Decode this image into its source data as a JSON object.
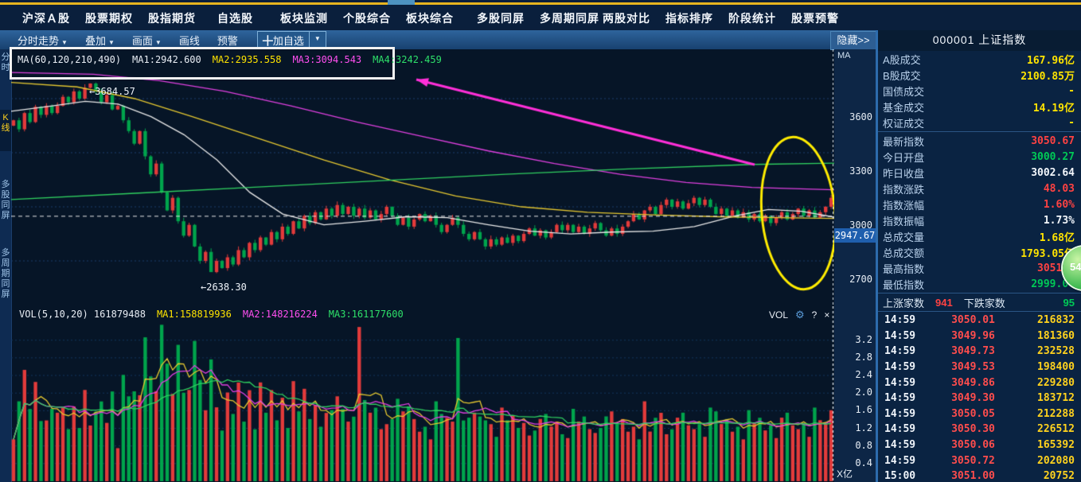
{
  "menu": {
    "items": [
      "沪深Ａ股",
      "股票期权",
      "股指期货",
      "自选股",
      "板块监测",
      "个股综合",
      "板块综合",
      "多股同屏",
      "多周期同屏",
      "两股对比",
      "指标排序",
      "阶段统计",
      "股票预警"
    ]
  },
  "toolbar": {
    "items": [
      {
        "label": "分时走势",
        "caret": true
      },
      {
        "label": "叠加",
        "caret": true
      },
      {
        "label": "画面",
        "caret": true
      },
      {
        "label": "画线",
        "caret": false
      },
      {
        "label": "预警",
        "caret": false
      }
    ],
    "add_favorite_label": "╋加自选",
    "add_favorite_caret": "▼",
    "hide_label": "隐藏>>"
  },
  "left_tabs": [
    {
      "label": "分时",
      "active": false
    },
    {
      "label": "K线",
      "active": true
    },
    {
      "label": "多股同屏",
      "active": false
    },
    {
      "label": "多周期同屏",
      "active": false
    }
  ],
  "chart": {
    "ma_legend": {
      "title": "MA(60,120,210,490)",
      "ma1": "MA1:2942.600",
      "ma2": "MA2:2935.558",
      "ma3": "MA3:3094.543",
      "ma4": "MA4:3242.459"
    },
    "corner_label": "MA",
    "peak_annotation": "←3684.57",
    "low_annotation": "←2638.30",
    "price_tag": "2947.67"
  },
  "volume_pane": {
    "legend": {
      "title": "VOL(5,10,20) 161879488",
      "ma1": "MA1:158819936",
      "ma2": "MA2:148216224",
      "ma3": "MA3:161177600"
    },
    "controls": {
      "label": "VOL",
      "gear": "⚙",
      "help": "?",
      "close": "×"
    },
    "unit": "X亿"
  },
  "right_panel": {
    "title": "000001  上证指数",
    "rows": [
      {
        "label": "A股成交",
        "value": "167.96亿",
        "color": "yellow",
        "sep_after": false
      },
      {
        "label": "B股成交",
        "value": "2100.85万",
        "color": "yellow",
        "sep_after": false
      },
      {
        "label": "国债成交",
        "value": "-",
        "color": "yellow",
        "sep_after": false
      },
      {
        "label": "基金成交",
        "value": "14.19亿",
        "color": "yellow",
        "sep_after": false
      },
      {
        "label": "权证成交",
        "value": "-",
        "color": "yellow",
        "sep_after": true
      },
      {
        "label": "最新指数",
        "value": "3050.67",
        "color": "red",
        "sep_after": false
      },
      {
        "label": "今日开盘",
        "value": "3000.27",
        "color": "green",
        "sep_after": false
      },
      {
        "label": "昨日收盘",
        "value": "3002.64",
        "color": "white",
        "sep_after": false
      },
      {
        "label": "指数涨跌",
        "value": "48.03",
        "color": "red",
        "sep_after": false
      },
      {
        "label": "指数涨幅",
        "value": "1.60%",
        "color": "red",
        "sep_after": false
      },
      {
        "label": "指数振幅",
        "value": "1.73%",
        "color": "white",
        "sep_after": false
      },
      {
        "label": "总成交量",
        "value": "1.68亿",
        "color": "yellow",
        "sep_after": false
      },
      {
        "label": "总成交额",
        "value": "1793.05亿",
        "color": "yellow",
        "sep_after": false
      },
      {
        "label": "最高指数",
        "value": "3051.0",
        "color": "red",
        "sep_after": false
      },
      {
        "label": "最低指数",
        "value": "2999.04",
        "color": "green",
        "sep_after": true
      }
    ],
    "breadth": {
      "up_label": "上涨家数",
      "up_value": "941",
      "down_label": "下跌家数",
      "down_value": "95"
    },
    "ticks": [
      {
        "t": "14:59",
        "p": "3050.01",
        "v": "216832"
      },
      {
        "t": "14:59",
        "p": "3049.96",
        "v": "181360"
      },
      {
        "t": "14:59",
        "p": "3049.73",
        "v": "232528"
      },
      {
        "t": "14:59",
        "p": "3049.53",
        "v": "198400"
      },
      {
        "t": "14:59",
        "p": "3049.86",
        "v": "229280"
      },
      {
        "t": "14:59",
        "p": "3049.30",
        "v": "183712"
      },
      {
        "t": "14:59",
        "p": "3050.05",
        "v": "212288"
      },
      {
        "t": "14:59",
        "p": "3050.30",
        "v": "226512"
      },
      {
        "t": "14:59",
        "p": "3050.06",
        "v": "165392"
      },
      {
        "t": "14:59",
        "p": "3050.72",
        "v": "202080"
      },
      {
        "t": "15:00",
        "p": "3051.00",
        "v": "20752"
      }
    ],
    "bubble_text": "54"
  },
  "chart_data": {
    "type": "candlestick_with_volume",
    "symbol": "000001 上证指数",
    "price_axis_ticks": [
      3600,
      3300,
      3000,
      2700
    ],
    "volume_axis_ticks": [
      3.2,
      2.8,
      2.4,
      2.0,
      1.6,
      1.2,
      0.8,
      0.4
    ],
    "reference_line": 2947.67,
    "high_annotation_price": 3684.57,
    "low_annotation_price": 2638.3,
    "closes": [
      3480,
      3430,
      3520,
      3470,
      3555,
      3510,
      3560,
      3520,
      3560,
      3610,
      3580,
      3640,
      3600,
      3660,
      3684,
      3640,
      3580,
      3620,
      3540,
      3560,
      3480,
      3420,
      3350,
      3420,
      3280,
      3180,
      3240,
      3080,
      2980,
      3050,
      2920,
      2840,
      2900,
      2780,
      2700,
      2750,
      2638,
      2700,
      2660,
      2720,
      2680,
      2760,
      2720,
      2800,
      2760,
      2830,
      2790,
      2860,
      2820,
      2890,
      2850,
      2920,
      2880,
      2950,
      2910,
      2970,
      2930,
      2990,
      2950,
      3010,
      2960,
      3000,
      2950,
      2990,
      2940,
      2980,
      2930,
      2960,
      3000,
      2950,
      2900,
      2940,
      2890,
      2930,
      2960,
      2920,
      2950,
      2900,
      2860,
      2900,
      2940,
      2900,
      2850,
      2820,
      2860,
      2820,
      2780,
      2820,
      2790,
      2830,
      2800,
      2840,
      2810,
      2850,
      2880,
      2840,
      2870,
      2830,
      2860,
      2900,
      2870,
      2900,
      2860,
      2890,
      2850,
      2880,
      2910,
      2870,
      2840,
      2880,
      2850,
      2890,
      2920,
      2960,
      2930,
      2980,
      3000,
      2960,
      3010,
      3040,
      3000,
      3030,
      2990,
      3020,
      3050,
      3010,
      3040,
      3000,
      2960,
      2990,
      2950,
      2980,
      2940,
      2970,
      2930,
      2960,
      2920,
      2950,
      2910,
      2940,
      2970,
      2930,
      2960,
      2990,
      2950,
      2980,
      2940,
      2970,
      3000,
      3050
    ],
    "volume_spikes": {
      "63": 3.5,
      "81": 3.25
    },
    "ma_lines": {
      "ma1": {
        "color": "#e9e9e9",
        "points": [
          [
            0,
            3530
          ],
          [
            0.05,
            3560
          ],
          [
            0.09,
            3585
          ],
          [
            0.13,
            3570
          ],
          [
            0.17,
            3500
          ],
          [
            0.21,
            3400
          ],
          [
            0.25,
            3260
          ],
          [
            0.29,
            3080
          ],
          [
            0.33,
            2960
          ],
          [
            0.38,
            2900
          ],
          [
            0.43,
            2920
          ],
          [
            0.48,
            2945
          ],
          [
            0.53,
            2940
          ],
          [
            0.58,
            2900
          ],
          [
            0.63,
            2865
          ],
          [
            0.68,
            2850
          ],
          [
            0.73,
            2860
          ],
          [
            0.78,
            2865
          ],
          [
            0.83,
            2890
          ],
          [
            0.88,
            2950
          ],
          [
            0.92,
            2985
          ],
          [
            0.96,
            2975
          ],
          [
            1,
            2942.6
          ]
        ]
      },
      "ma2": {
        "color": "#e6c830",
        "points": [
          [
            0,
            3690
          ],
          [
            0.08,
            3665
          ],
          [
            0.15,
            3600
          ],
          [
            0.22,
            3500
          ],
          [
            0.3,
            3380
          ],
          [
            0.38,
            3260
          ],
          [
            0.46,
            3150
          ],
          [
            0.54,
            3060
          ],
          [
            0.62,
            3000
          ],
          [
            0.7,
            2970
          ],
          [
            0.78,
            2955
          ],
          [
            0.86,
            2945
          ],
          [
            0.93,
            2940
          ],
          [
            1,
            2935.6
          ]
        ]
      },
      "ma3": {
        "color": "#e040e0",
        "points": [
          [
            0,
            3745
          ],
          [
            0.1,
            3735
          ],
          [
            0.18,
            3700
          ],
          [
            0.26,
            3640
          ],
          [
            0.34,
            3560
          ],
          [
            0.42,
            3470
          ],
          [
            0.5,
            3390
          ],
          [
            0.58,
            3310
          ],
          [
            0.66,
            3240
          ],
          [
            0.74,
            3180
          ],
          [
            0.82,
            3135
          ],
          [
            0.9,
            3108
          ],
          [
            1,
            3094.5
          ]
        ]
      },
      "ma4": {
        "color": "#30d060",
        "points": [
          [
            0,
            3040
          ],
          [
            0.15,
            3075
          ],
          [
            0.3,
            3110
          ],
          [
            0.45,
            3145
          ],
          [
            0.6,
            3180
          ],
          [
            0.75,
            3210
          ],
          [
            0.9,
            3235
          ],
          [
            1,
            3242.5
          ]
        ]
      }
    },
    "colors": {
      "up": "#e23b3b",
      "down": "#00a44c",
      "grid": "#1c3f6e",
      "arrow": "#ff2fd8",
      "ellipse": "#ffec00",
      "vol_ma": [
        "#e6c830",
        "#e040e0",
        "#30d060"
      ]
    }
  }
}
